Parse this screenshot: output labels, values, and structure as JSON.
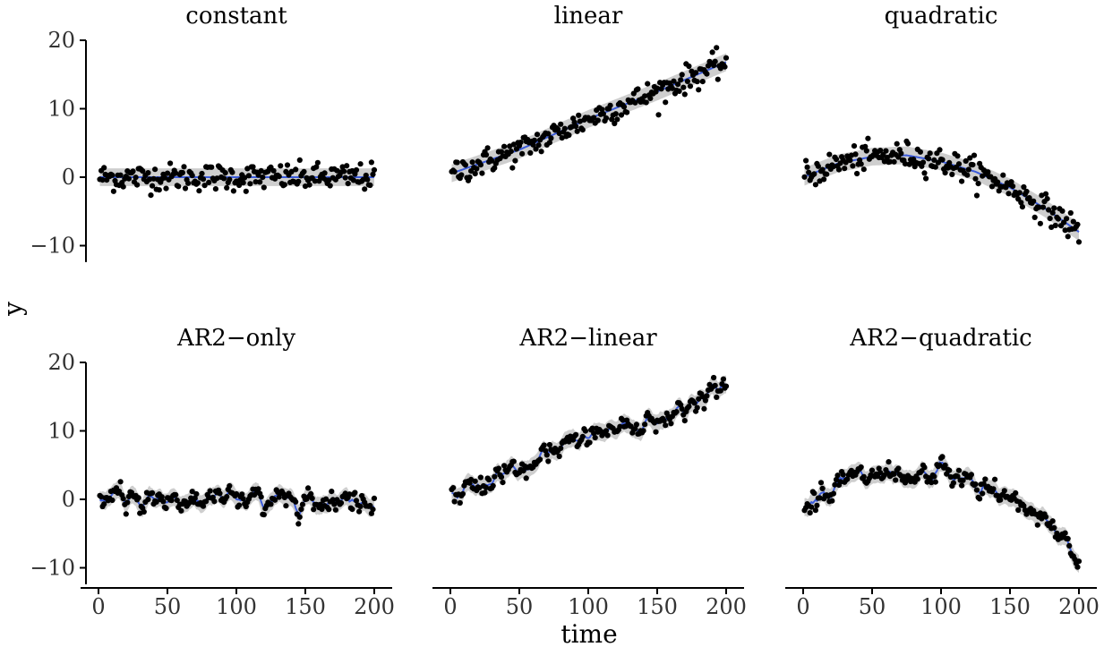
{
  "chart_data": {
    "type": "scatter",
    "xlabel": "time",
    "ylabel": "y",
    "xlim": [
      0,
      200
    ],
    "ylim": [
      -10,
      20
    ],
    "x_ticks": [
      0,
      50,
      100,
      150,
      200
    ],
    "y_ticks": [
      -10,
      0,
      10,
      20
    ],
    "point_color": "#000000",
    "line_color": "#3b5bdb",
    "band_color": "#bdbdbd",
    "panels": [
      {
        "title": "constant",
        "n_points": 200,
        "trend": [
          [
            0,
            0
          ],
          [
            50,
            0
          ],
          [
            100,
            0
          ],
          [
            150,
            0
          ],
          [
            200,
            0
          ]
        ],
        "noise_sd": 1.0,
        "ar": false,
        "x_axis_shown": false,
        "y_axis_shown": true
      },
      {
        "title": "linear",
        "n_points": 200,
        "trend": [
          [
            0,
            0.5
          ],
          [
            50,
            4
          ],
          [
            100,
            8.5
          ],
          [
            150,
            12.5
          ],
          [
            200,
            16.8
          ]
        ],
        "noise_sd": 1.0,
        "ar": false,
        "x_axis_shown": false,
        "y_axis_shown": false
      },
      {
        "title": "quadratic",
        "n_points": 200,
        "trend": [
          [
            0,
            0
          ],
          [
            25,
            2
          ],
          [
            50,
            3
          ],
          [
            75,
            3.2
          ],
          [
            100,
            2.3
          ],
          [
            125,
            0.8
          ],
          [
            150,
            -1.5
          ],
          [
            175,
            -4.5
          ],
          [
            200,
            -8
          ]
        ],
        "noise_sd": 1.0,
        "ar": false,
        "x_axis_shown": false,
        "y_axis_shown": false
      },
      {
        "title": "AR2−only",
        "n_points": 200,
        "trend": [
          [
            0,
            0
          ],
          [
            50,
            0
          ],
          [
            100,
            0
          ],
          [
            150,
            0
          ],
          [
            200,
            0
          ]
        ],
        "noise_sd": 0.6,
        "ar": true,
        "x_axis_shown": true,
        "y_axis_shown": true
      },
      {
        "title": "AR2−linear",
        "n_points": 200,
        "trend": [
          [
            0,
            0.8
          ],
          [
            50,
            4
          ],
          [
            100,
            9.5
          ],
          [
            150,
            11.5
          ],
          [
            200,
            16.5
          ]
        ],
        "noise_sd": 0.6,
        "ar": true,
        "x_axis_shown": true,
        "y_axis_shown": false
      },
      {
        "title": "AR2−quadratic",
        "n_points": 200,
        "trend": [
          [
            0,
            -1
          ],
          [
            25,
            2.8
          ],
          [
            50,
            3.3
          ],
          [
            75,
            2.2
          ],
          [
            100,
            4.3
          ],
          [
            125,
            2
          ],
          [
            150,
            0
          ],
          [
            175,
            -2.5
          ],
          [
            200,
            -9
          ]
        ],
        "noise_sd": 0.6,
        "ar": true,
        "x_axis_shown": true,
        "y_axis_shown": false
      }
    ]
  }
}
